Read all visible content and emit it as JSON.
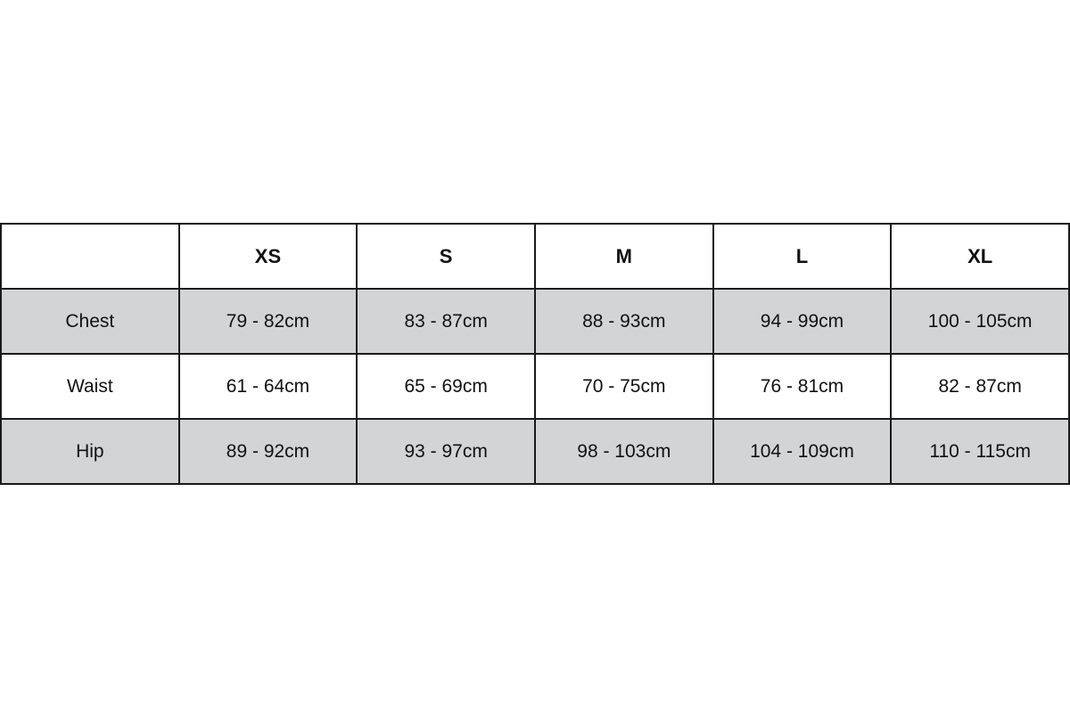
{
  "sizes": [
    "XS",
    "S",
    "M",
    "L",
    "XL"
  ],
  "rows": [
    {
      "label": "Chest",
      "values": [
        "79 - 82cm",
        "83 - 87cm",
        "88 - 93cm",
        "94 - 99cm",
        "100 - 105cm"
      ],
      "shaded": true
    },
    {
      "label": "Waist",
      "values": [
        "61 - 64cm",
        "65 - 69cm",
        "70 - 75cm",
        "76 - 81cm",
        "82 - 87cm"
      ],
      "shaded": false
    },
    {
      "label": "Hip",
      "values": [
        "89 - 92cm",
        "93 - 97cm",
        "98 - 103cm",
        "104 - 109cm",
        "110 - 115cm"
      ],
      "shaded": true
    }
  ],
  "colors": {
    "shaded_row": "#d3d4d6",
    "border": "#1a1a1a"
  }
}
